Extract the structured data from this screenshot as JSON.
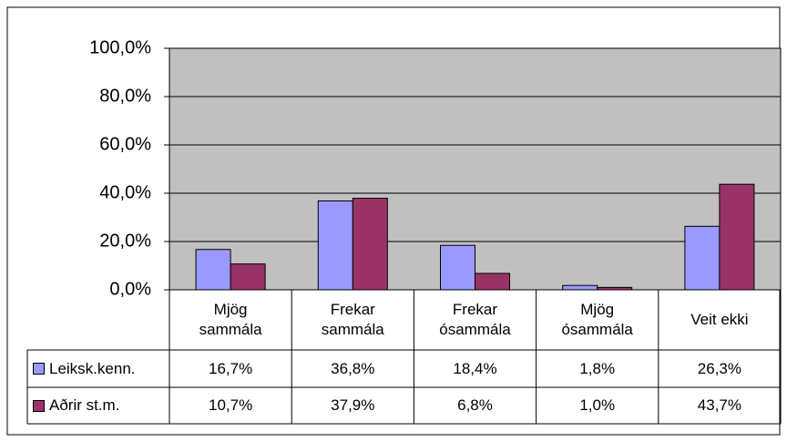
{
  "chart_data": {
    "type": "bar",
    "categories": [
      "Mjög sammála",
      "Frekar sammála",
      "Frekar ósammála",
      "Mjög ósammála",
      "Veit ekki"
    ],
    "series": [
      {
        "name": "Leiksk.kenn.",
        "color": "#9999ff",
        "values": [
          16.7,
          36.8,
          18.4,
          1.8,
          26.3
        ],
        "value_labels": [
          "16,7%",
          "36,8%",
          "18,4%",
          "1,8%",
          "26,3%"
        ]
      },
      {
        "name": "Aðrir st.m.",
        "color": "#993366",
        "values": [
          10.7,
          37.9,
          6.8,
          1.0,
          43.7
        ],
        "value_labels": [
          "10,7%",
          "37,9%",
          "6,8%",
          "1,0%",
          "43,7%"
        ]
      }
    ],
    "ylim": [
      0,
      100
    ],
    "yticks": [
      {
        "value": 0,
        "label": "0,0%"
      },
      {
        "value": 20,
        "label": "20,0%"
      },
      {
        "value": 40,
        "label": "40,0%"
      },
      {
        "value": 60,
        "label": "60,0%"
      },
      {
        "value": 80,
        "label": "80,0%"
      },
      {
        "value": 100,
        "label": "100,0%"
      }
    ],
    "grid": true,
    "plot_background": "#c0c0c0"
  }
}
